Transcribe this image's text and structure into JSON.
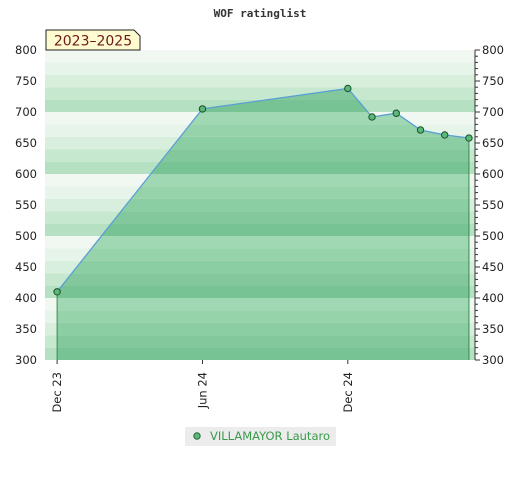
{
  "chart_data": {
    "type": "area",
    "title": "WOF ratinglist",
    "period_label": "2023–2025",
    "ylim": [
      300,
      800
    ],
    "y_ticks": [
      300,
      350,
      400,
      450,
      500,
      550,
      600,
      650,
      700,
      750,
      800
    ],
    "x_ticks": [
      "Dec 23",
      "Jun 24",
      "Dec 24"
    ],
    "x_tick_months": [
      0,
      6,
      12
    ],
    "x_range_months": [
      -0.5,
      17.25
    ],
    "series": [
      {
        "name": "VILLAMAYOR Lautaro",
        "color": "#5a9fd4",
        "fill": "#5ab878",
        "points": [
          {
            "month": 0,
            "y": 410
          },
          {
            "month": 6,
            "y": 705
          },
          {
            "month": 12,
            "y": 738
          },
          {
            "month": 13,
            "y": 692
          },
          {
            "month": 14,
            "y": 698
          },
          {
            "month": 15,
            "y": 671
          },
          {
            "month": 16,
            "y": 663
          },
          {
            "month": 17,
            "y": 658
          }
        ]
      }
    ],
    "grid": true,
    "legend_position": "bottom-center"
  }
}
